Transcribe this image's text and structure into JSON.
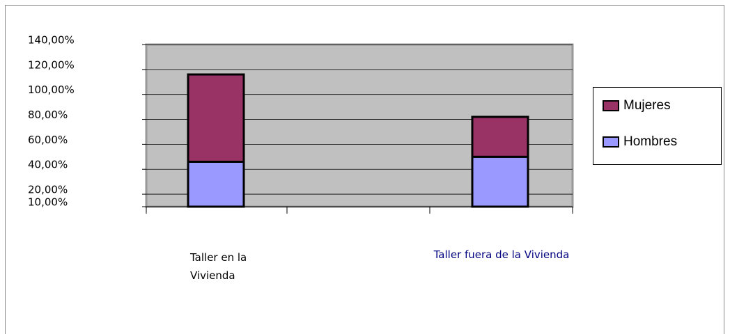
{
  "chart_data": {
    "type": "stacked_bar",
    "categories": [
      "Taller en la Vivienda",
      "Taller fuera de la Vivienda"
    ],
    "series": [
      {
        "name": "Hombres",
        "color": "#9999ff",
        "values": [
          46,
          50
        ]
      },
      {
        "name": "Mujeres",
        "color": "#993366",
        "values": [
          70,
          32
        ]
      }
    ],
    "ylim": [
      10,
      140
    ],
    "yticks": [
      {
        "value": 10,
        "label": "10,00%"
      },
      {
        "value": 20,
        "label": "20,00%"
      },
      {
        "value": 40,
        "label": "40,00%"
      },
      {
        "value": 60,
        "label": "60,00%"
      },
      {
        "value": 80,
        "label": "80,00%"
      },
      {
        "value": 100,
        "label": "100,00%"
      },
      {
        "value": 120,
        "label": "120,00%"
      },
      {
        "value": 140,
        "label": "140,00%"
      }
    ],
    "grid": true,
    "legend": "right"
  }
}
